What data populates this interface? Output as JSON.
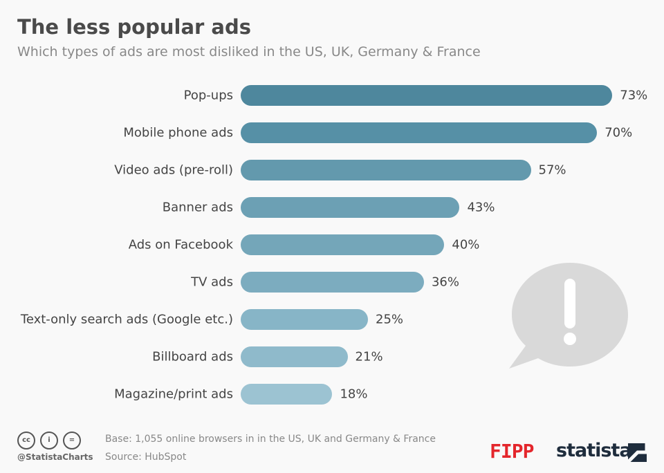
{
  "title": "The less popular ads",
  "subtitle": "Which types of ads are most disliked in the US, UK, Germany & France",
  "chart_data": {
    "type": "bar",
    "orientation": "horizontal",
    "title": "The less popular ads",
    "subtitle": "Which types of ads are most disliked in the US, UK, Germany & France",
    "categories": [
      "Pop-ups",
      "Mobile phone ads",
      "Video ads (pre-roll)",
      "Banner ads",
      "Ads on Facebook",
      "TV ads",
      "Text-only search ads (Google etc.)",
      "Billboard ads",
      "Magazine/print ads"
    ],
    "values": [
      73,
      70,
      57,
      43,
      40,
      36,
      25,
      21,
      18
    ],
    "labels": [
      "73%",
      "70%",
      "57%",
      "43%",
      "40%",
      "36%",
      "25%",
      "21%",
      "18%"
    ],
    "unit": "%",
    "grid": false,
    "colors": [
      "#4e879d",
      "#5690a6",
      "#6399ad",
      "#6ca0b4",
      "#74a6b9",
      "#7cacbf",
      "#87b5c7",
      "#8fbacb",
      "#9cc3d2"
    ]
  },
  "footer": {
    "base": "Base: 1,055 online browsers in in the US, UK and Germany & France",
    "source": "Source: HubSpot",
    "handle": "@StatistaCharts",
    "license_icons": [
      "cc",
      "by",
      "nd"
    ],
    "cc_labels": [
      "cc",
      "i",
      "="
    ],
    "logos": [
      "FIPP",
      "statista"
    ],
    "fipp_color": "#e4262c",
    "statista_color": "#1f2d3d"
  },
  "illustration": "speech-bubble-exclamation-icon"
}
